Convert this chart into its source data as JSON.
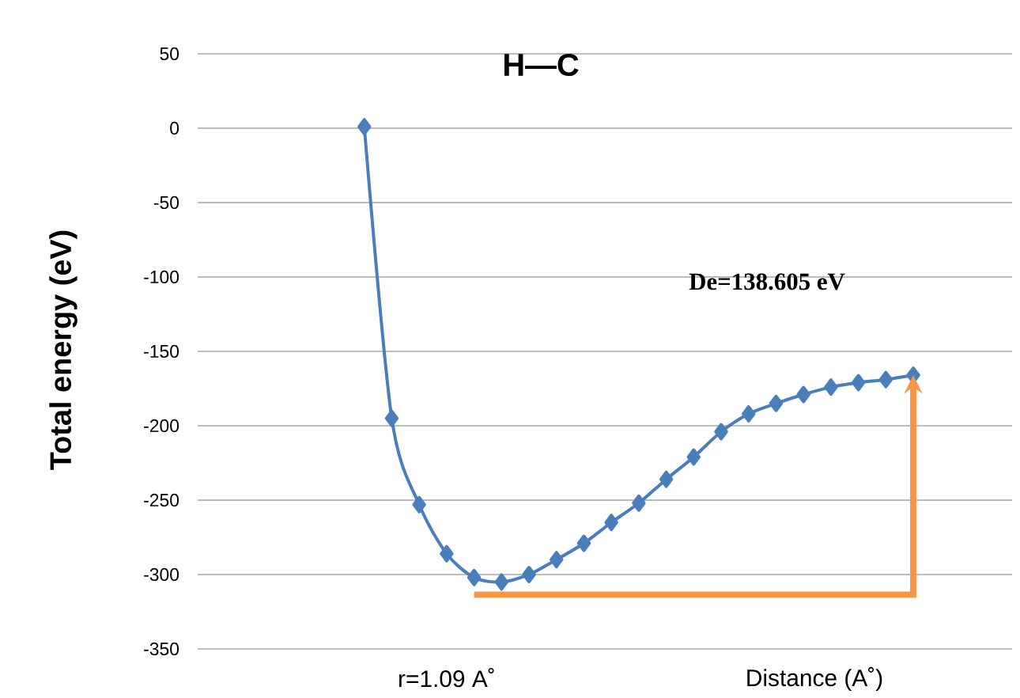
{
  "chart_data": {
    "type": "line",
    "title": "H—C",
    "ylabel": "Total energy (eV)",
    "xlabel": "Distance  (A˚)",
    "annotations": [
      "De=138.605 eV",
      "r=1.09 A˚"
    ],
    "categories": [
      null,
      null,
      null,
      null,
      null,
      null,
      null,
      null,
      null,
      null,
      null,
      null,
      null,
      null,
      null,
      null,
      null,
      null,
      null,
      null,
      null
    ],
    "series": [
      {
        "color": "#4a7ebb",
        "values": [
          1,
          -195,
          -253,
          -286,
          -302,
          -305,
          -300,
          -290,
          -279,
          -265,
          -252,
          -236,
          -221,
          -204,
          -192,
          -185,
          -179,
          -174,
          -171,
          -169,
          -166
        ]
      }
    ],
    "ylim": [
      -350,
      50
    ],
    "yticks": [
      -350,
      -300,
      -250,
      -200,
      -150,
      -100,
      -50,
      0,
      50
    ],
    "grid": "y",
    "marker": "diamond",
    "line_style": "solid"
  }
}
